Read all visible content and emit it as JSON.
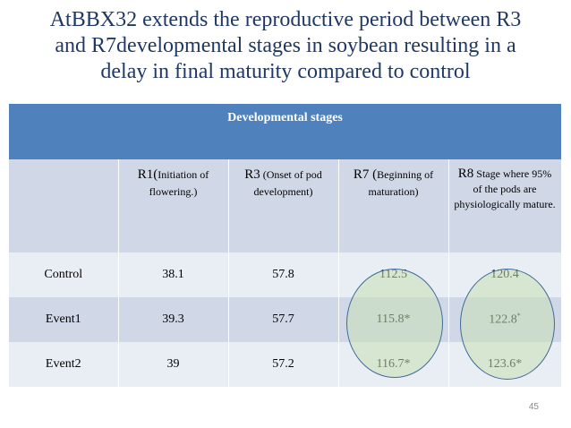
{
  "title": {
    "line1": "AtBBX32 extends the reproductive period between R3",
    "line2": "and R7developmental stages in soybean resulting in a",
    "line3": "delay in final maturity compared to control"
  },
  "table": {
    "group_header": "Developmental stages",
    "columns": [
      {
        "big": "R1(",
        "small": "Initiation of flowering.)"
      },
      {
        "big": "R3",
        "small": " (Onset of pod development)"
      },
      {
        "big": "R7 (",
        "small": "Beginning of maturation)"
      },
      {
        "big": "R8",
        "small": " Stage where 95% of the pods are physiologically mature."
      }
    ],
    "rows": [
      {
        "label": "Control",
        "values": [
          "38.1",
          "57.8",
          "112.5",
          "120.4"
        ]
      },
      {
        "label": "Event1",
        "values": [
          "39.3",
          "57.7",
          "115.8*",
          "122.8"
        ],
        "sup": "*"
      },
      {
        "label": "Event2",
        "values": [
          "39",
          "57.2",
          "116.7*",
          "123.6*"
        ]
      }
    ]
  },
  "highlight_color": "#c6e0b4",
  "page_number": "45"
}
